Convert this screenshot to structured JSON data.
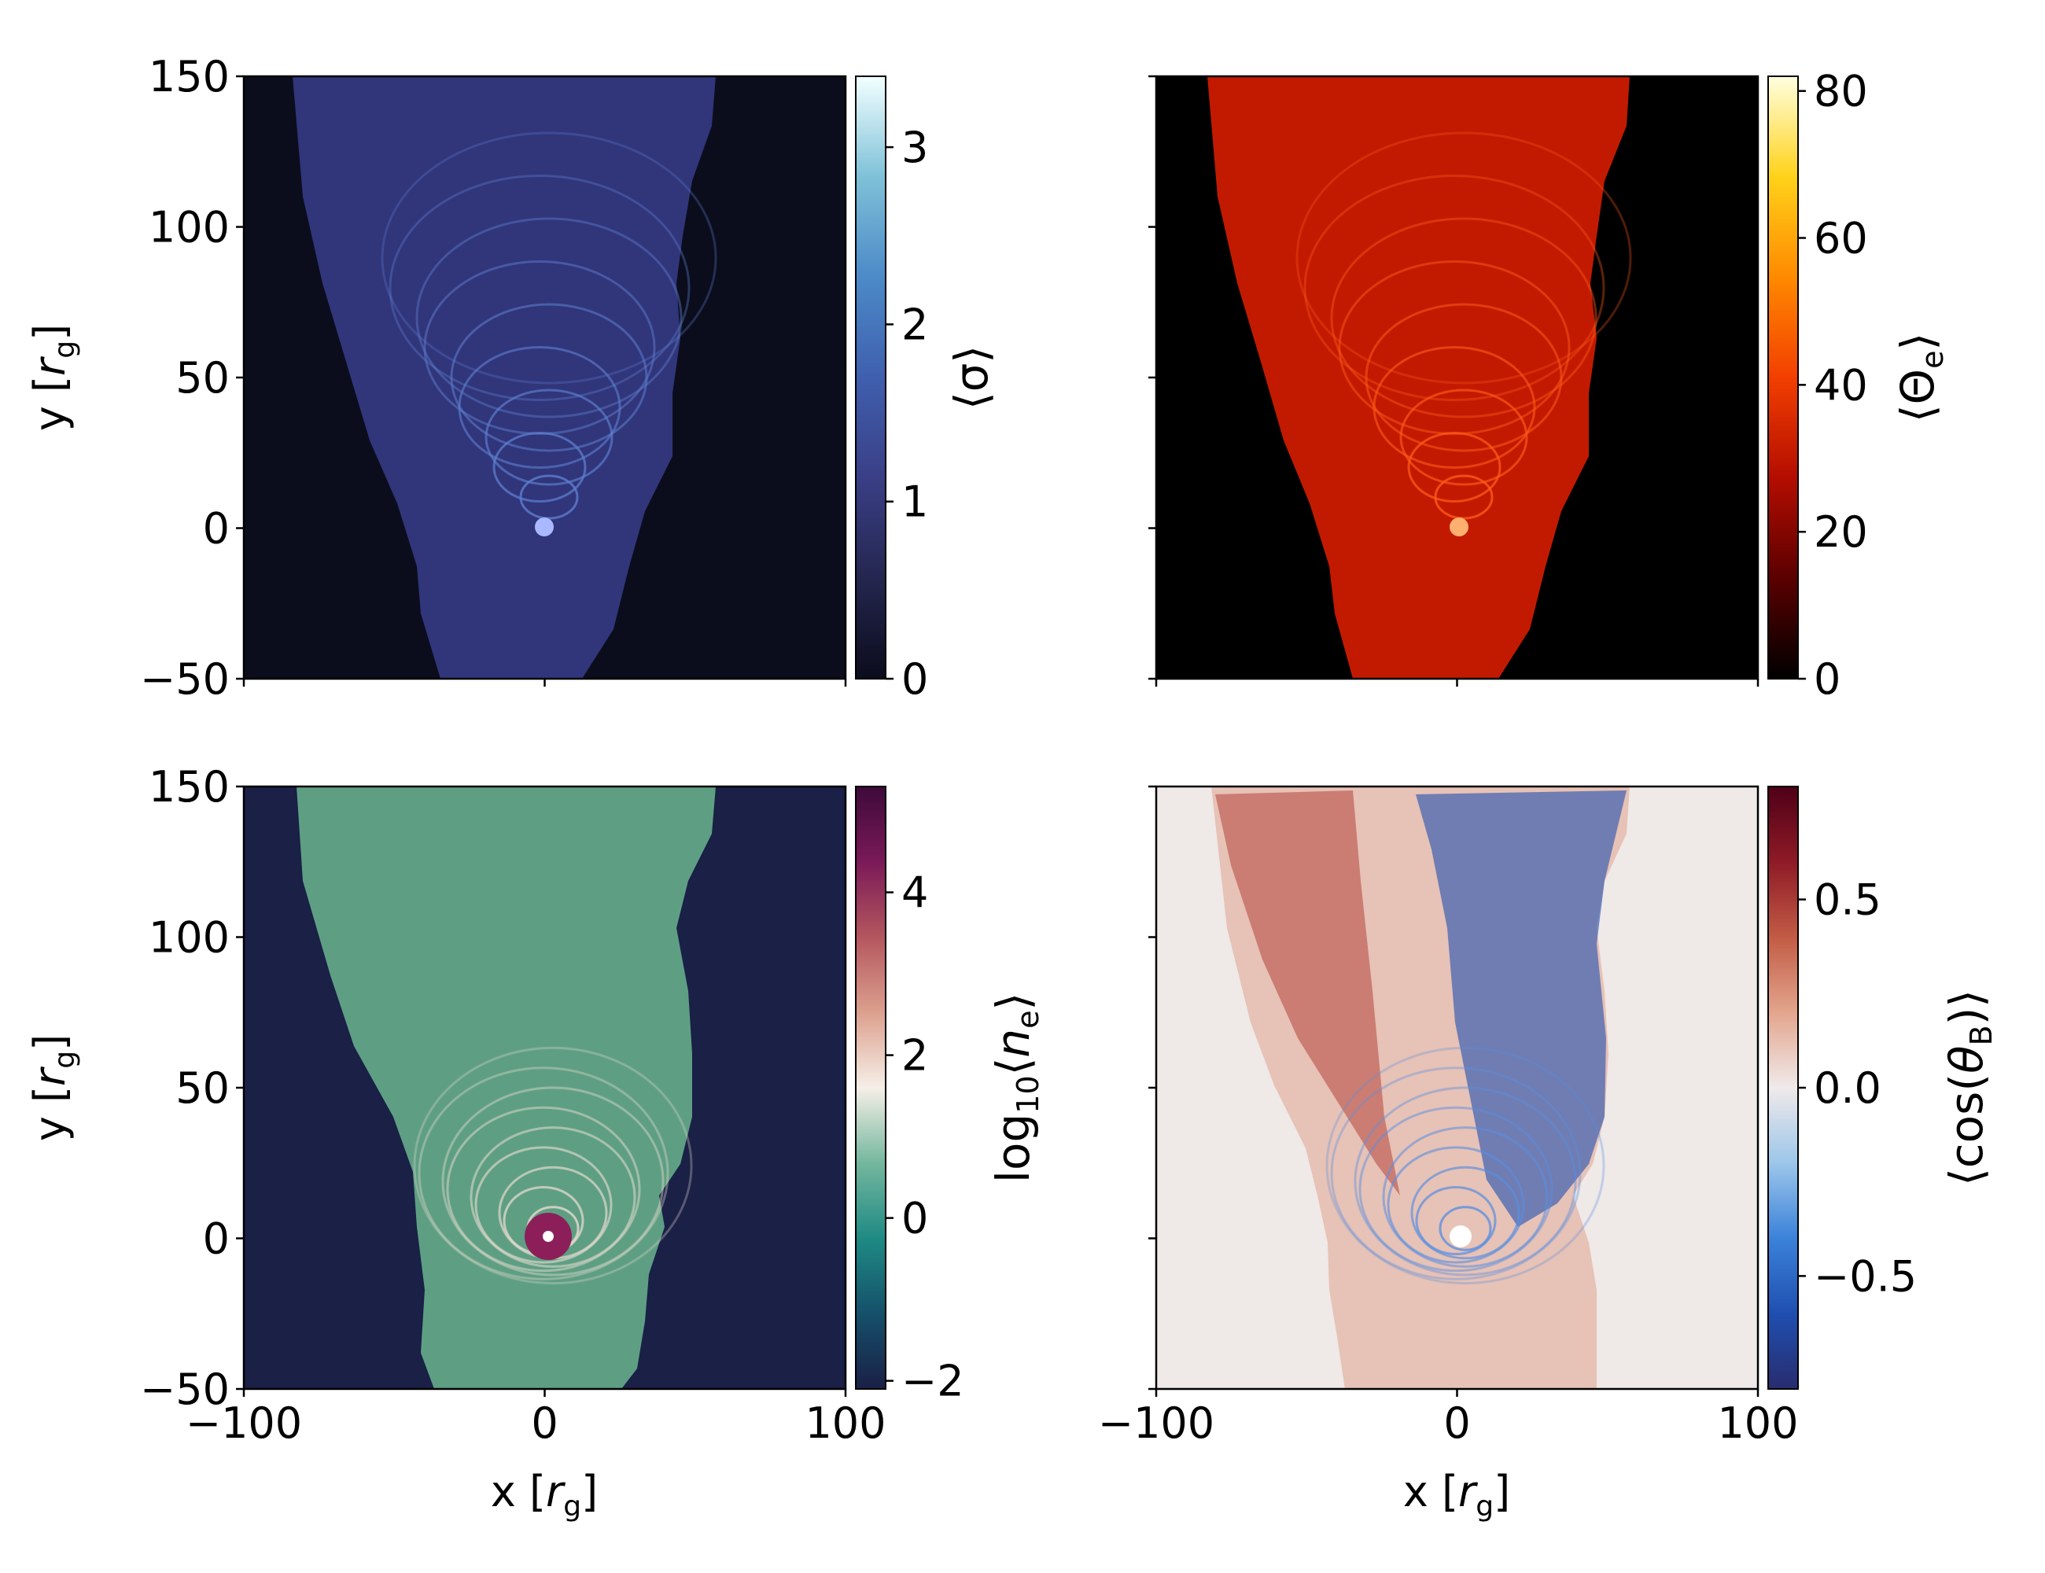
{
  "chart_data": [
    {
      "type": "heatmap",
      "panel": "top-left",
      "xlim": [
        -100,
        100
      ],
      "ylim": [
        -50,
        150
      ],
      "x_ticks": [
        "−100",
        "0",
        "100"
      ],
      "y_ticks": [
        "150",
        "100",
        "50",
        "0",
        "−50"
      ],
      "show_x_ticklabels": false,
      "show_y_ticklabels": true,
      "ylabel_pre": "y [",
      "ylabel_var": "r",
      "ylabel_sub": "g",
      "ylabel_post": "]",
      "colorbar": {
        "label": "⟨σ⟩",
        "range": [
          0,
          3.4
        ],
        "ticks": [
          "0",
          "1",
          "2",
          "3"
        ],
        "tick_values": [
          0,
          1,
          2,
          3
        ],
        "colormap": [
          "#0b0c1c",
          "#24264f",
          "#3a3f86",
          "#3f5fae",
          "#4c8ac8",
          "#7fc1d8",
          "#f2ffff"
        ]
      },
      "background": "#0b0d1c",
      "plume_color": "#31357a",
      "ring_color": "#5d7fcf",
      "core_color": "#aab8ff"
    },
    {
      "type": "heatmap",
      "panel": "top-right",
      "xlim": [
        -100,
        100
      ],
      "ylim": [
        -50,
        150
      ],
      "x_ticks": [
        "−100",
        "0",
        "100"
      ],
      "y_ticks": [
        "150",
        "100",
        "50",
        "0",
        "−50"
      ],
      "show_x_ticklabels": false,
      "show_y_ticklabels": false,
      "colorbar": {
        "label": "⟨Θe⟩",
        "label_main": "⟨Θ",
        "label_sub": "e",
        "label_close": "⟩",
        "range": [
          0,
          82
        ],
        "ticks": [
          "0",
          "20",
          "40",
          "60",
          "80"
        ],
        "tick_values": [
          0,
          20,
          40,
          60,
          80
        ],
        "colormap": [
          "#000000",
          "#5a0000",
          "#b40d00",
          "#f23f00",
          "#ff8a00",
          "#ffd21a",
          "#ffffe0"
        ]
      },
      "background": "#000000",
      "plume_color": "#c21a00",
      "ring_color": "#ff5a1a",
      "core_color": "#ffb070"
    },
    {
      "type": "heatmap",
      "panel": "bottom-left",
      "xlim": [
        -100,
        100
      ],
      "ylim": [
        -50,
        150
      ],
      "x_ticks": [
        "−100",
        "0",
        "100"
      ],
      "y_ticks": [
        "150",
        "100",
        "50",
        "0",
        "−50"
      ],
      "show_x_ticklabels": true,
      "show_y_ticklabels": true,
      "xlabel_pre": "x [",
      "xlabel_var": "r",
      "xlabel_sub": "g",
      "xlabel_post": "]",
      "ylabel_pre": "y [",
      "ylabel_var": "r",
      "ylabel_sub": "g",
      "ylabel_post": "]",
      "colorbar": {
        "label": "log10⟨ne⟩",
        "label_main": "log",
        "label_sub1": "10",
        "label_mid": "⟨",
        "label_var": "n",
        "label_sub2": "e",
        "label_close": "⟩",
        "range": [
          -2.1,
          5.3
        ],
        "ticks": [
          "−2",
          "0",
          "2",
          "4"
        ],
        "tick_values": [
          -2,
          0,
          2,
          4
        ],
        "colormap": [
          "#1a1f45",
          "#15506a",
          "#1f8a84",
          "#74b79e",
          "#f6efe7",
          "#dca08e",
          "#b4565e",
          "#7a1a58",
          "#3d0a3a"
        ]
      },
      "background": "#1a2046",
      "plume_color": "#5e9f84",
      "ring_color": "#e8dccf",
      "core_color": "#8c1f5a"
    },
    {
      "type": "heatmap",
      "panel": "bottom-right",
      "xlim": [
        -100,
        100
      ],
      "ylim": [
        -50,
        150
      ],
      "x_ticks": [
        "−100",
        "0",
        "100"
      ],
      "y_ticks": [
        "150",
        "100",
        "50",
        "0",
        "−50"
      ],
      "show_x_ticklabels": true,
      "show_y_ticklabels": false,
      "xlabel_pre": "x [",
      "xlabel_var": "r",
      "xlabel_sub": "g",
      "xlabel_post": "]",
      "colorbar": {
        "label": "⟨cos(θB)⟩",
        "label_main": "⟨cos(",
        "label_var": "θ",
        "label_sub": "B",
        "label_close": ")⟩",
        "range": [
          -0.8,
          0.8
        ],
        "ticks": [
          "−0.5",
          "0.0",
          "0.5"
        ],
        "tick_values": [
          -0.5,
          0.0,
          0.5
        ],
        "colormap": [
          "#282c6e",
          "#1f4fb0",
          "#3b82d9",
          "#9cc6ea",
          "#f0eaea",
          "#e3a58d",
          "#c25b45",
          "#8e1a26",
          "#4f0018"
        ]
      },
      "background": "#efe9e8",
      "plume_color": "#e7c2b6",
      "ring_color": "#5a8fe0",
      "core_color": "#ffffff"
    }
  ]
}
